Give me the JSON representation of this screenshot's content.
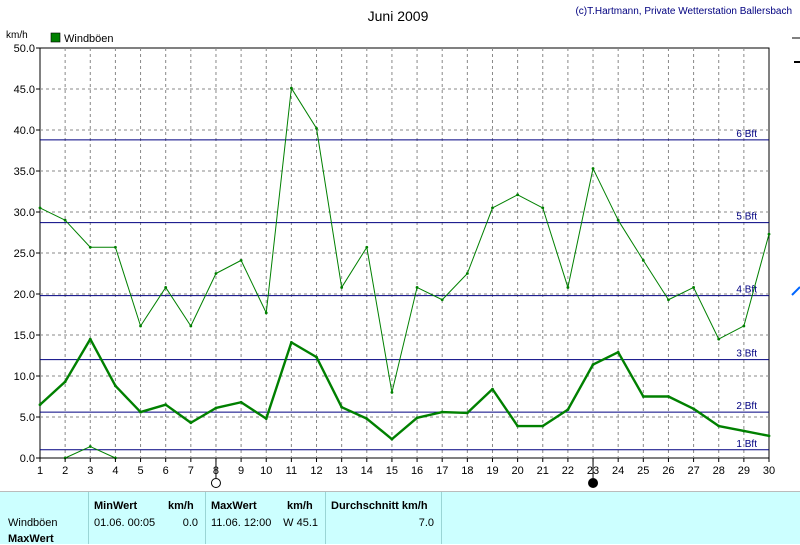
{
  "header": {
    "title": "Juni 2009",
    "copyright": "(c)T.Hartmann, Private Wetterstation Ballersbach"
  },
  "chart_data": {
    "type": "line",
    "unit": "km/h",
    "legend": [
      {
        "label": "Windböen",
        "color": "#008000"
      }
    ],
    "legend_position": "top-left",
    "grid": true,
    "xlim": [
      1,
      30
    ],
    "ylim": [
      0,
      50
    ],
    "x_ticks": [
      1,
      2,
      3,
      4,
      5,
      6,
      7,
      8,
      9,
      10,
      11,
      12,
      13,
      14,
      15,
      16,
      17,
      18,
      19,
      20,
      21,
      22,
      23,
      24,
      25,
      26,
      27,
      28,
      29,
      30
    ],
    "y_ticks": [
      "0.0",
      "5.0",
      "10.0",
      "15.0",
      "20.0",
      "25.0",
      "30.0",
      "35.0",
      "40.0",
      "45.0",
      "50.0"
    ],
    "series": [
      {
        "name": "Windböen",
        "color": "#008000",
        "width": 1,
        "x": [
          1,
          2,
          3,
          4,
          5,
          6,
          7,
          8,
          9,
          10,
          11,
          12,
          13,
          14,
          15,
          16,
          17,
          18,
          19,
          20,
          21,
          22,
          23,
          24,
          25,
          26,
          27,
          28,
          29,
          30
        ],
        "y": [
          30.5,
          29.0,
          25.7,
          25.7,
          16.1,
          20.8,
          16.1,
          22.5,
          24.1,
          17.7,
          45.1,
          40.2,
          20.8,
          25.7,
          8.0,
          20.8,
          19.3,
          22.5,
          30.5,
          32.1,
          30.5,
          20.8,
          35.3,
          29.0,
          24.1,
          19.3,
          20.8,
          14.5,
          16.1,
          27.3
        ]
      },
      {
        "color": "#008000",
        "width": 2.4,
        "x": [
          1,
          2,
          3,
          4,
          5,
          6,
          7,
          8,
          9,
          10,
          11,
          12,
          13,
          14,
          15,
          16,
          17,
          18,
          19,
          20,
          21,
          22,
          23,
          24,
          25,
          26,
          27,
          28,
          29,
          30
        ],
        "y": [
          6.5,
          9.3,
          14.5,
          8.8,
          5.6,
          6.5,
          4.3,
          6.1,
          6.8,
          4.8,
          14.1,
          12.3,
          6.2,
          4.8,
          2.3,
          4.9,
          5.6,
          5.5,
          8.4,
          3.9,
          3.9,
          5.9,
          11.4,
          12.9,
          7.5,
          7.5,
          6.0,
          3.9,
          3.3,
          2.7
        ]
      },
      {
        "color": "#008000",
        "width": 1,
        "x": [
          2,
          3,
          4
        ],
        "y": [
          0.0,
          1.4,
          0.0
        ]
      }
    ],
    "beaufort_lines": [
      {
        "label": "1 Bft",
        "value": 1.0
      },
      {
        "label": "2 Bft",
        "value": 5.6
      },
      {
        "label": "3 Bft",
        "value": 12.0
      },
      {
        "label": "4 Bft",
        "value": 19.8
      },
      {
        "label": "5 Bft",
        "value": 28.7
      },
      {
        "label": "6 Bft",
        "value": 38.8
      }
    ],
    "moon_phases": [
      {
        "day": 8,
        "phase": "full"
      },
      {
        "day": 23,
        "phase": "new"
      }
    ]
  },
  "summary": {
    "row1_label": "Windböen",
    "row2_label": "MaxWert",
    "minwert_header": "MinWert",
    "maxwert_header": "MaxWert",
    "unit1": "km/h",
    "unit2": "km/h",
    "avg_header": "Durchschnitt km/h",
    "min_datetime": "01.06.  00:05",
    "min_value": "0.0",
    "max_datetime": "11.06.  12:00",
    "max_value": "W 45.1",
    "avg_value": "7.0"
  }
}
